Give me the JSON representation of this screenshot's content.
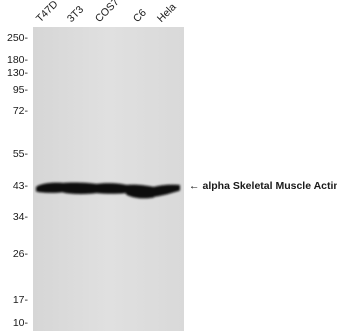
{
  "lanes": [
    "T47D",
    "3T3",
    "COS7",
    "C6",
    "Hela"
  ],
  "markers": [
    "250-",
    "180-",
    "130-",
    "95-",
    "72-",
    "55-",
    "43-",
    "34-",
    "26-",
    "17-",
    "10-"
  ],
  "annotation": {
    "arrow": "←",
    "text": "alpha Skeletal Muscle Actin"
  },
  "colors": {
    "membrane": "#dedede",
    "band": "#0b0b0b",
    "text": "#1a1a1a"
  }
}
